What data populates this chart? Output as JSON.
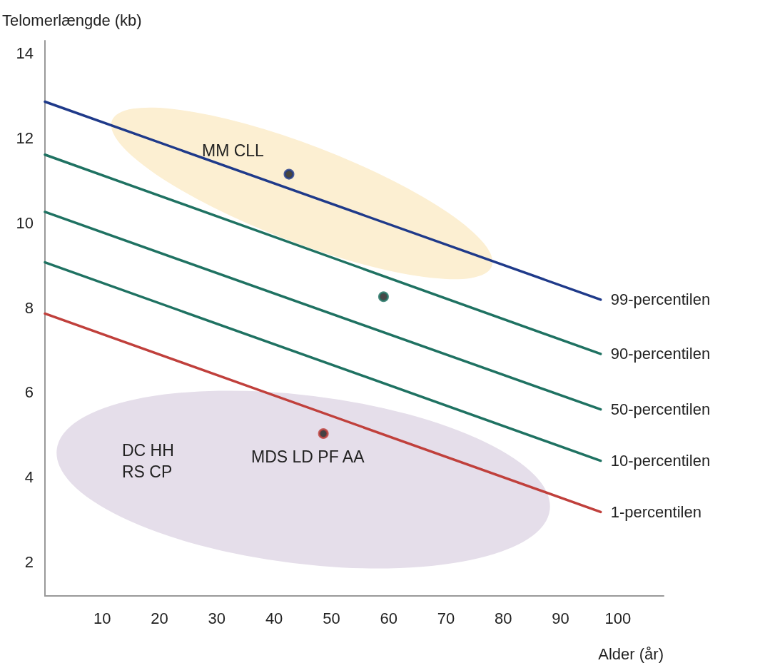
{
  "chart_data": {
    "type": "line",
    "xlabel": "Alder (år)",
    "ylabel": "Telomerlængde (kb)",
    "xlim": [
      0,
      108
    ],
    "xticks": [
      10,
      20,
      30,
      40,
      50,
      60,
      70,
      80,
      90,
      100
    ],
    "ylim": [
      1.2,
      14.3
    ],
    "yticks": [
      2,
      4,
      6,
      8,
      10,
      12,
      14
    ],
    "grid": false,
    "legend": false,
    "marker": "none",
    "line_style": "solid",
    "series": [
      {
        "name": "99-percentilen",
        "color": "#1f3a8a",
        "x": [
          0,
          97
        ],
        "values": [
          12.86,
          8.19
        ]
      },
      {
        "name": "90-percentilen",
        "color": "#1f7262",
        "x": [
          0,
          97
        ],
        "values": [
          11.61,
          6.91
        ]
      },
      {
        "name": "50-percentilen",
        "color": "#1f7262",
        "x": [
          0,
          97
        ],
        "values": [
          10.26,
          5.6
        ]
      },
      {
        "name": "10-percentilen",
        "color": "#1f7262",
        "x": [
          0,
          97
        ],
        "values": [
          9.07,
          4.39
        ]
      },
      {
        "name": "1-percentilen",
        "color": "#c0403c",
        "x": [
          0,
          97
        ],
        "values": [
          7.86,
          3.18
        ]
      },
      {
        "type": "scatter",
        "marker": "circle",
        "x": [
          42.6,
          59.1,
          48.6
        ],
        "values": [
          11.15,
          8.26,
          5.03
        ],
        "colors": [
          "#1f3a8a",
          "#1f7262",
          "#c0403c"
        ]
      }
    ],
    "annotations": [
      "MM CLL",
      "DC HH",
      "RS CP",
      "MDS LD PF AA"
    ]
  }
}
